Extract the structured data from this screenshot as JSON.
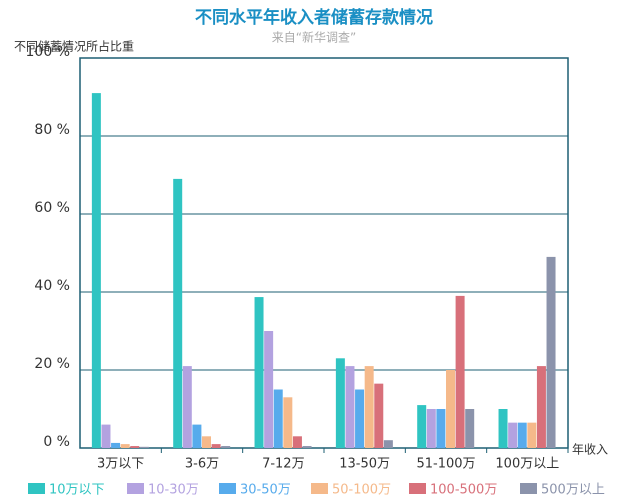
{
  "chart_data": {
    "type": "bar",
    "title": "不同水平年收入者储蓄存款情况",
    "subtitle": "来自“新华调查”",
    "y_axis_label": "不同储蓄情况所占比重",
    "x_axis_label": "年收入",
    "categories": [
      "3万以下",
      "3-6万",
      "7-12万",
      "13-50万",
      "51-100万",
      "100万以上"
    ],
    "series": [
      {
        "name": "10万以下",
        "color": "#2fc4c2",
        "values": [
          91,
          69,
          38.7,
          23,
          11,
          10
        ]
      },
      {
        "name": "10-30万",
        "color": "#b3a2e0",
        "values": [
          6,
          21,
          30,
          21,
          10,
          6.5
        ]
      },
      {
        "name": "30-50万",
        "color": "#57abec",
        "values": [
          1.3,
          6,
          15,
          15,
          10,
          6.5
        ]
      },
      {
        "name": "50-100万",
        "color": "#f5b98a",
        "values": [
          1,
          3,
          13,
          21,
          20,
          6.5
        ]
      },
      {
        "name": "100-500万",
        "color": "#d8707a",
        "values": [
          0.5,
          1,
          3,
          16.5,
          39,
          21
        ]
      },
      {
        "name": "500万以上",
        "color": "#8b93ab",
        "values": [
          0.3,
          0.5,
          0.5,
          2,
          10,
          49
        ]
      }
    ],
    "ylim": [
      0,
      100
    ],
    "yticks": [
      {
        "value": 0,
        "label": "0 %"
      },
      {
        "value": 20,
        "label": "20 %"
      },
      {
        "value": 40,
        "label": "40 %"
      },
      {
        "value": 60,
        "label": "60 %"
      },
      {
        "value": 80,
        "label": "80 %"
      },
      {
        "value": 100,
        "label": "100 %"
      }
    ],
    "grid": true
  }
}
